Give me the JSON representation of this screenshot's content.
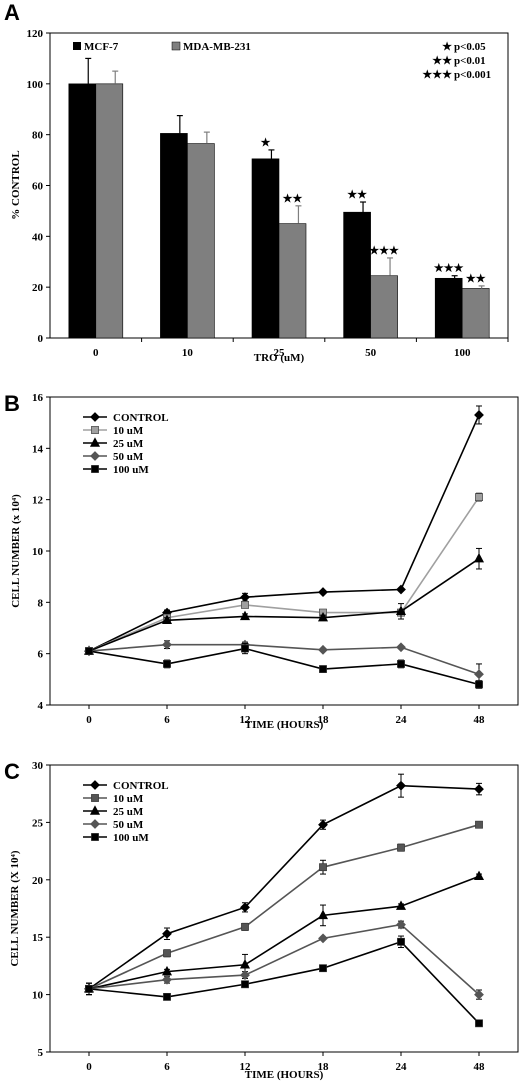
{
  "chart_data": [
    {
      "type": "bar",
      "panel": "A",
      "categories": [
        "0",
        "10",
        "25",
        "50",
        "100"
      ],
      "series": [
        {
          "name": "MCF-7",
          "color": "#000000",
          "values": [
            100,
            80.5,
            70.5,
            49.5,
            23.5
          ],
          "errors": [
            10,
            7,
            3.5,
            4,
            1
          ],
          "significance": [
            "",
            "",
            "★",
            "★★",
            "★★★"
          ]
        },
        {
          "name": "MDA-MB-231",
          "color": "#7f7f7f",
          "values": [
            100,
            76.5,
            45,
            24.5,
            19.5
          ],
          "errors": [
            5,
            4.5,
            7,
            7,
            1
          ],
          "significance": [
            "",
            "",
            "★★",
            "★★★",
            "★★"
          ]
        }
      ],
      "xlabel": "TRO (uM)",
      "ylabel": "% CONTROL",
      "ylim": [
        0,
        120
      ],
      "yticks": [
        0,
        20,
        40,
        60,
        80,
        100,
        120
      ],
      "significance_key": [
        {
          "stars": "★",
          "label": "p<0.05"
        },
        {
          "stars": "★★",
          "label": "p<0.01"
        },
        {
          "stars": "★★★",
          "label": "p<0.001"
        }
      ],
      "legend": "top-left",
      "grid": false
    },
    {
      "type": "line",
      "panel": "B",
      "x": [
        "0",
        "6",
        "12",
        "18",
        "24",
        "48"
      ],
      "series": [
        {
          "name": "CONTROL",
          "marker": "diamond",
          "color": "#000000",
          "values": [
            6.1,
            7.6,
            8.2,
            8.4,
            8.5,
            15.3
          ],
          "errors": [
            0,
            0.1,
            0.15,
            0.05,
            0.05,
            0.35
          ]
        },
        {
          "name": "10 uM",
          "marker": "square",
          "color": "#a0a0a0",
          "values": [
            6.1,
            7.4,
            7.9,
            7.6,
            7.6,
            12.1
          ],
          "errors": [
            0,
            0.1,
            0.1,
            0.1,
            0.1,
            0.15
          ]
        },
        {
          "name": "25 uM",
          "marker": "triangle",
          "color": "#000000",
          "values": [
            6.1,
            7.3,
            7.45,
            7.4,
            7.65,
            9.7
          ],
          "errors": [
            0,
            0.1,
            0.1,
            0.1,
            0.3,
            0.4
          ]
        },
        {
          "name": "50 uM",
          "marker": "diamond",
          "color": "#555555",
          "values": [
            6.1,
            6.35,
            6.35,
            6.15,
            6.25,
            5.2
          ],
          "errors": [
            0,
            0.15,
            0.1,
            0.05,
            0.05,
            0.4
          ]
        },
        {
          "name": "100 uM",
          "marker": "square",
          "color": "#000000",
          "values": [
            6.1,
            5.6,
            6.2,
            5.4,
            5.6,
            4.8
          ],
          "errors": [
            0,
            0.15,
            0.2,
            0.05,
            0.15,
            0.15
          ]
        }
      ],
      "xlabel": "TIME (HOURS)",
      "ylabel": "CELL NUMBER (x 10⁴)",
      "ylim": [
        4,
        16
      ],
      "yticks": [
        4,
        6,
        8,
        10,
        12,
        14,
        16
      ],
      "legend": "top-left",
      "grid": false
    },
    {
      "type": "line",
      "panel": "C",
      "x": [
        "0",
        "6",
        "12",
        "18",
        "24",
        "48"
      ],
      "series": [
        {
          "name": "CONTROL",
          "marker": "diamond",
          "color": "#000000",
          "values": [
            10.5,
            15.3,
            17.6,
            24.8,
            28.2,
            27.9
          ],
          "errors": [
            0.5,
            0.5,
            0.4,
            0.4,
            1,
            0.5
          ]
        },
        {
          "name": "10 uM",
          "marker": "square",
          "color": "#555555",
          "values": [
            10.5,
            13.6,
            15.9,
            21.1,
            22.8,
            24.8
          ],
          "errors": [
            0.5,
            0.3,
            0.3,
            0.6,
            0.3,
            0.2
          ]
        },
        {
          "name": "25 uM",
          "marker": "triangle",
          "color": "#000000",
          "values": [
            10.5,
            12.0,
            12.6,
            16.9,
            17.7,
            20.3
          ],
          "errors": [
            0.5,
            0.2,
            0.9,
            0.9,
            0.2,
            0.2
          ]
        },
        {
          "name": "50 uM",
          "marker": "diamond",
          "color": "#555555",
          "values": [
            10.5,
            11.3,
            11.7,
            14.9,
            16.1,
            10.0
          ],
          "errors": [
            0.5,
            0.3,
            0.3,
            0.1,
            0.3,
            0.4
          ]
        },
        {
          "name": "100 uM",
          "marker": "square",
          "color": "#000000",
          "values": [
            10.5,
            9.8,
            10.9,
            12.3,
            14.6,
            7.5
          ],
          "errors": [
            0.5,
            0.1,
            0.2,
            0.1,
            0.5,
            0.1
          ]
        }
      ],
      "xlabel": "TIME (HOURS)",
      "ylabel": "CELL NUMBER (X 10⁴)",
      "ylim": [
        5,
        30
      ],
      "yticks": [
        5,
        10,
        15,
        20,
        25,
        30
      ],
      "legend": "top-left",
      "grid": false
    }
  ]
}
